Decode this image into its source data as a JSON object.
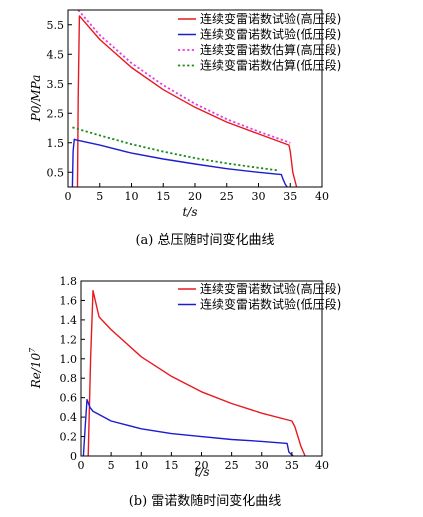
{
  "chart_data": [
    {
      "type": "line",
      "caption": "(a) 总压随时间变化曲线",
      "xlabel": "t/s",
      "ylabel": "P0/MPa",
      "xlim": [
        0,
        40
      ],
      "ylim": [
        0,
        6
      ],
      "xticks": [
        "0",
        "5",
        "10",
        "15",
        "20",
        "25",
        "30",
        "35",
        "40"
      ],
      "yticks": [
        "0.5",
        "1.5",
        "2.5",
        "3.5",
        "4.5",
        "5.5"
      ],
      "legend_position": "top-right",
      "series": [
        {
          "name": "连续变雷诺数试验(高压段)",
          "color": "#e8191f",
          "dash": "solid",
          "x": [
            1.5,
            1.6,
            1.8,
            2.0,
            5,
            10,
            15,
            20,
            25,
            30,
            34.8,
            35.0,
            35.4,
            36.0
          ],
          "y": [
            0.0,
            3.0,
            5.8,
            5.75,
            5.0,
            4.05,
            3.3,
            2.7,
            2.2,
            1.8,
            1.42,
            1.2,
            0.5,
            0.0
          ]
        },
        {
          "name": "连续变雷诺数试验(低压段)",
          "color": "#1d1dd0",
          "dash": "solid",
          "x": [
            0.7,
            0.8,
            1.0,
            1.2,
            5,
            10,
            15,
            20,
            25,
            30,
            33.6,
            33.8,
            34.2,
            34.5
          ],
          "y": [
            0.0,
            1.2,
            1.62,
            1.6,
            1.42,
            1.15,
            0.95,
            0.78,
            0.62,
            0.5,
            0.42,
            0.3,
            0.1,
            0.0
          ]
        },
        {
          "name": "连续变雷诺数估算(高压段)",
          "color": "#e83ae0",
          "dash": "dotted",
          "x": [
            1.6,
            5,
            10,
            15,
            20,
            25,
            30,
            35
          ],
          "y": [
            6.0,
            5.15,
            4.2,
            3.45,
            2.82,
            2.3,
            1.88,
            1.5
          ]
        },
        {
          "name": "连续变雷诺数估算(低压段)",
          "color": "#1c8a1c",
          "dash": "dotted",
          "x": [
            0.7,
            5,
            10,
            15,
            20,
            25,
            30,
            33.2
          ],
          "y": [
            2.02,
            1.75,
            1.45,
            1.2,
            0.98,
            0.8,
            0.65,
            0.56
          ]
        }
      ]
    },
    {
      "type": "line",
      "caption": "(b) 雷诺数随时间变化曲线",
      "xlabel": "t/s",
      "ylabel": "Re/10",
      "ylabel_sup": "7",
      "xlim": [
        0,
        40
      ],
      "ylim": [
        0,
        1.8
      ],
      "xticks": [
        "0",
        "5",
        "10",
        "15",
        "20",
        "25",
        "30",
        "35",
        "40"
      ],
      "yticks": [
        "0",
        "0.2",
        "0.4",
        "0.6",
        "0.8",
        "1.0",
        "1.2",
        "1.4",
        "1.6",
        "1.8"
      ],
      "legend_position": "top-right",
      "series": [
        {
          "name": "连续变雷诺数试验(高压段)",
          "color": "#e8191f",
          "dash": "solid",
          "x": [
            1.2,
            1.6,
            2.0,
            3.0,
            5,
            10,
            15,
            20,
            25,
            30,
            35.0,
            35.5,
            36.5,
            37.2
          ],
          "y": [
            0.0,
            1.0,
            1.7,
            1.43,
            1.3,
            1.02,
            0.82,
            0.66,
            0.54,
            0.44,
            0.36,
            0.3,
            0.1,
            0.0
          ]
        },
        {
          "name": "连续变雷诺数试验(低压段)",
          "color": "#1d1dd0",
          "dash": "solid",
          "x": [
            0.4,
            0.7,
            1.0,
            1.5,
            2.0,
            5,
            10,
            15,
            20,
            25,
            30,
            34.2,
            34.5,
            35.2
          ],
          "y": [
            0.0,
            0.3,
            0.58,
            0.5,
            0.46,
            0.36,
            0.28,
            0.23,
            0.2,
            0.17,
            0.15,
            0.13,
            0.04,
            0.0
          ]
        }
      ]
    }
  ]
}
